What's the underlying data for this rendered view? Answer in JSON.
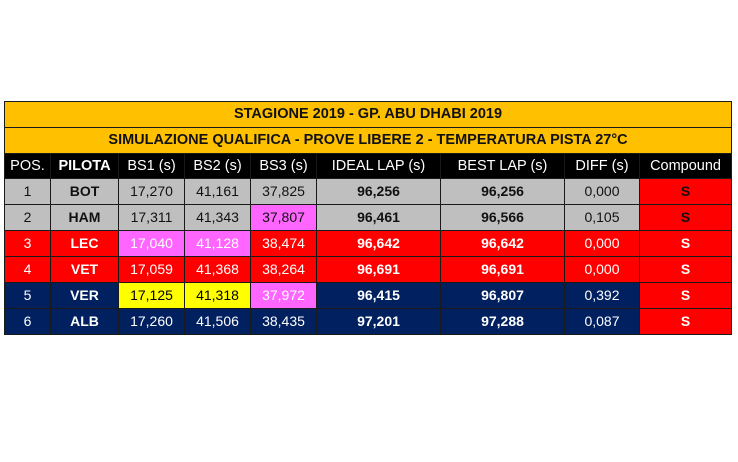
{
  "title": "STAGIONE 2019 - GP. ABU DHABI 2019",
  "subtitle": "SIMULAZIONE QUALIFICA -  PROVE LIBERE 2 - TEMPERATURA PISTA 27°C",
  "columns": [
    "POS.",
    "PILOTA",
    "BS1 (s)",
    "BS2 (s)",
    "BS3 (s)",
    "IDEAL LAP (s)",
    "BEST LAP (s)",
    "DIFF (s)",
    "Compound"
  ],
  "rows": [
    {
      "pos": "1",
      "pilota": "BOT",
      "bs1": "17,270",
      "bs2": "41,161",
      "bs3": "37,825",
      "ideal": "96,256",
      "best": "96,256",
      "diff": "0,000",
      "compound": "S"
    },
    {
      "pos": "2",
      "pilota": "HAM",
      "bs1": "17,311",
      "bs2": "41,343",
      "bs3": "37,807",
      "ideal": "96,461",
      "best": "96,566",
      "diff": "0,105",
      "compound": "S"
    },
    {
      "pos": "3",
      "pilota": "LEC",
      "bs1": "17,040",
      "bs2": "41,128",
      "bs3": "38,474",
      "ideal": "96,642",
      "best": "96,642",
      "diff": "0,000",
      "compound": "S"
    },
    {
      "pos": "4",
      "pilota": "VET",
      "bs1": "17,059",
      "bs2": "41,368",
      "bs3": "38,264",
      "ideal": "96,691",
      "best": "96,691",
      "diff": "0,000",
      "compound": "S"
    },
    {
      "pos": "5",
      "pilota": "VER",
      "bs1": "17,125",
      "bs2": "41,318",
      "bs3": "37,972",
      "ideal": "96,415",
      "best": "96,807",
      "diff": "0,392",
      "compound": "S"
    },
    {
      "pos": "6",
      "pilota": "ALB",
      "bs1": "17,260",
      "bs2": "41,506",
      "bs3": "38,435",
      "ideal": "97,201",
      "best": "97,288",
      "diff": "0,087",
      "compound": "S"
    }
  ],
  "colors": {
    "title_bg": "#ffc000",
    "header_bg": "#000000",
    "mercedes_row": "#bfbfbf",
    "ferrari_row": "#ff0000",
    "redbull_row": "#002060",
    "compound_soft": "#ff0000",
    "highlight_magenta": "#ff66ff",
    "highlight_yellow": "#ffff00"
  }
}
